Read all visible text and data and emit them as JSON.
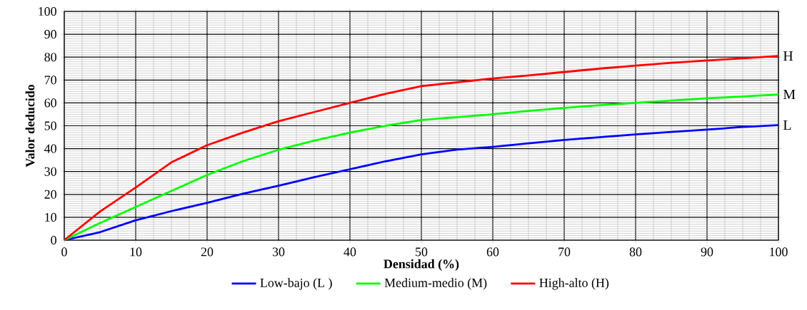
{
  "chart_data": {
    "type": "line",
    "xlabel": "Densidad (%)",
    "ylabel": "Valor deducido",
    "x": [
      0,
      5,
      10,
      15,
      20,
      25,
      30,
      35,
      40,
      45,
      50,
      55,
      60,
      65,
      70,
      75,
      80,
      85,
      90,
      95,
      100
    ],
    "series": [
      {
        "name": "Low-bajo (L )",
        "color": "#0000ff",
        "values": [
          0,
          3.5,
          8.7,
          12.7,
          16.3,
          20.3,
          23.8,
          27.5,
          31,
          34.5,
          37.5,
          39.6,
          40.8,
          42.3,
          43.8,
          45,
          46.2,
          47.3,
          48.3,
          49.5,
          50.3
        ]
      },
      {
        "name": "Medium-medio (M)",
        "color": "#00ff00",
        "values": [
          0,
          7.5,
          14.5,
          21.5,
          28.5,
          34.5,
          39.5,
          43.5,
          47,
          50,
          52.5,
          53.8,
          55,
          56.5,
          57.8,
          59,
          60,
          61,
          62,
          62.8,
          63.7
        ]
      },
      {
        "name": "High-alto (H)",
        "color": "#ff0000",
        "values": [
          0,
          12.5,
          23,
          34,
          41.5,
          47,
          52,
          56,
          60,
          64,
          67.3,
          69,
          70.7,
          72,
          73.5,
          75,
          76.3,
          77.5,
          78.5,
          79.5,
          80.5
        ]
      }
    ],
    "annotations": [
      "L",
      "M",
      "H"
    ],
    "xlim": [
      0,
      100
    ],
    "ylim": [
      0,
      100
    ],
    "xticks": [
      0,
      10,
      20,
      30,
      40,
      50,
      60,
      70,
      80,
      90,
      100
    ],
    "yticks": [
      0,
      10,
      20,
      30,
      40,
      50,
      60,
      70,
      80,
      90,
      100
    ],
    "grid": true,
    "legend": "bottom",
    "marker": "none",
    "line_style": "solid"
  }
}
